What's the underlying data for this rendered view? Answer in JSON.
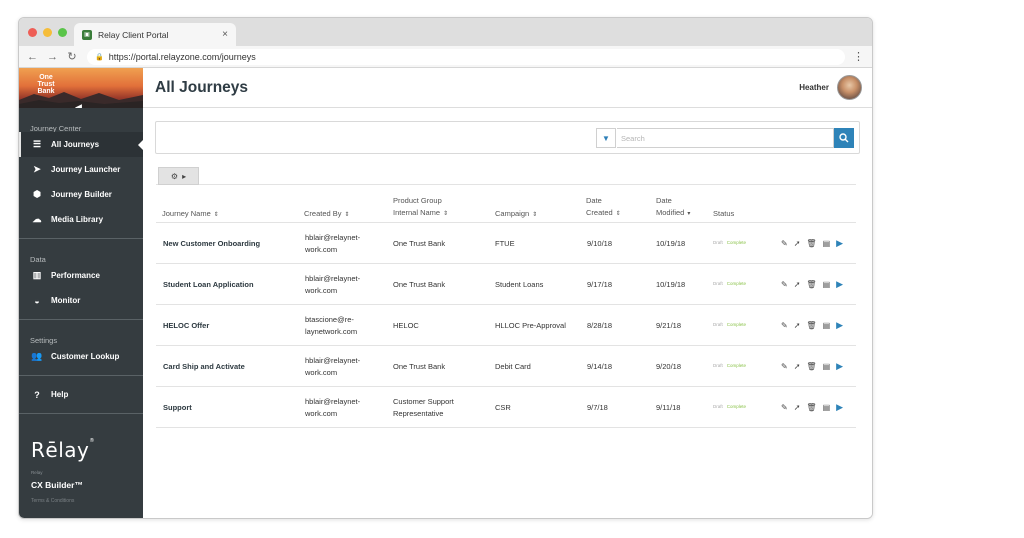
{
  "browser": {
    "tab_title": "Relay Client Portal",
    "tab_close": "×",
    "url": "https://portal.relayzone.com/journeys"
  },
  "sidebar": {
    "bank_name": "One Trust Bank",
    "sections": [
      {
        "label": "Journey Center",
        "items": [
          {
            "label": "All Journeys",
            "icon": "list-icon"
          },
          {
            "label": "Journey Launcher",
            "icon": "paper-plane-icon"
          },
          {
            "label": "Journey Builder",
            "icon": "cubes-icon"
          },
          {
            "label": "Media Library",
            "icon": "cloud-icon"
          }
        ]
      },
      {
        "label": "Data",
        "items": [
          {
            "label": "Performance",
            "icon": "bar-chart-icon"
          },
          {
            "label": "Monitor",
            "icon": "gauge-icon"
          }
        ]
      },
      {
        "label": "Settings",
        "items": [
          {
            "label": "Customer Lookup",
            "icon": "users-icon"
          }
        ]
      }
    ],
    "help_label": "Help",
    "logo": "Rēlay",
    "logo_sub": "Relay",
    "product": "CX Builder™",
    "terms": "Terms & Conditions"
  },
  "header": {
    "title": "All Journeys",
    "user_name": "Heather"
  },
  "search": {
    "placeholder": "Search"
  },
  "table": {
    "headers": {
      "journey_name": "Journey Name",
      "created_by": "Created By",
      "product_group": [
        "Product Group",
        "Internal Name"
      ],
      "campaign": "Campaign",
      "date_created": [
        "Date",
        "Created"
      ],
      "date_modified": [
        "Date",
        "Modified"
      ],
      "status": "Status"
    },
    "rows": [
      {
        "name": "New Customer Onboarding",
        "created_by": [
          "hblair@relaynet-",
          "work.com"
        ],
        "product_group": [
          "One Trust Bank"
        ],
        "campaign": "FTUE",
        "created": "9/10/18",
        "modified": "10/19/18",
        "draft": "Draft",
        "complete": "Complete"
      },
      {
        "name": "Student Loan Application",
        "created_by": [
          "hblair@relaynet-",
          "work.com"
        ],
        "product_group": [
          "One Trust Bank"
        ],
        "campaign": "Student Loans",
        "created": "9/17/18",
        "modified": "10/19/18",
        "draft": "Draft",
        "complete": "Complete"
      },
      {
        "name": "HELOC Offer",
        "created_by": [
          "btascione@re-",
          "laynetwork.com"
        ],
        "product_group": [
          "HELOC"
        ],
        "campaign": "HLLOC Pre-Approval",
        "created": "8/28/18",
        "modified": "9/21/18",
        "draft": "Draft",
        "complete": "Complete"
      },
      {
        "name": "Card Ship and Activate",
        "created_by": [
          "hblair@relaynet-",
          "work.com"
        ],
        "product_group": [
          "One Trust Bank"
        ],
        "campaign": "Debit Card",
        "created": "9/14/18",
        "modified": "9/20/18",
        "draft": "Draft",
        "complete": "Complete"
      },
      {
        "name": "Support",
        "created_by": [
          "hblair@relaynet-",
          "work.com"
        ],
        "product_group": [
          "Customer Support",
          "Representative"
        ],
        "campaign": "CSR",
        "created": "9/7/18",
        "modified": "9/11/18",
        "draft": "Draft",
        "complete": "Complete"
      }
    ]
  }
}
